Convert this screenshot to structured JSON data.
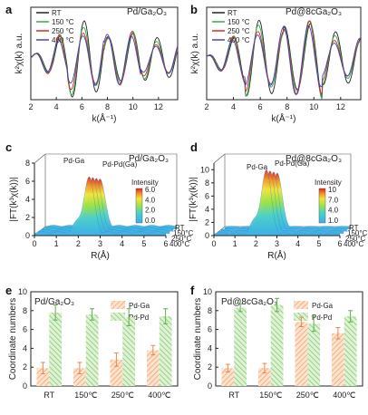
{
  "colors": {
    "RT": "#222222",
    "150": "#2fae4a",
    "250": "#d8262a",
    "400": "#3b49b8",
    "pd_ga": "#f5b98a",
    "pd_pd": "#9ad486"
  },
  "panels": {
    "a": {
      "letter": "a",
      "sample": "Pd/Ga₂O₃"
    },
    "b": {
      "letter": "b",
      "sample": "Pd@8cGa₂O₃"
    },
    "c": {
      "letter": "c",
      "sample": "Pd/Ga₂O₃"
    },
    "d": {
      "letter": "d",
      "sample": "Pd@8cGa₂O₃"
    },
    "e": {
      "letter": "e",
      "sample": "Pd/Ga₂O₃"
    },
    "f": {
      "letter": "f",
      "sample": "Pd@8cGa₂O₃"
    }
  },
  "exafs_legend": [
    "RT",
    "150 °C",
    "250 °C",
    "400 °C"
  ],
  "ft_annot": {
    "pd_ga": "Pd-Ga",
    "pd_pd": "Pd-Pd(Ga)",
    "intensity": "Intensity"
  },
  "temps_3d": [
    "RT",
    "150°C",
    "250°C",
    "400°C"
  ],
  "bar_legend": [
    "Pd-Ga",
    "Pd-Pd"
  ],
  "chart_data": [
    {
      "panel": "a",
      "type": "line",
      "xlabel": "k(Å⁻¹)",
      "ylabel": "k²χ(k) a.u.",
      "xlim": [
        2,
        13.5
      ],
      "xticks": [
        2,
        4,
        6,
        8,
        10,
        12
      ],
      "series": [
        {
          "name": "RT",
          "amp": [
            0.7,
            1.0,
            0.78,
            0.56
          ]
        },
        {
          "name": "150 °C",
          "amp": [
            0.66,
            0.94,
            0.74,
            0.52
          ]
        },
        {
          "name": "250 °C",
          "amp": [
            0.62,
            0.9,
            0.7,
            0.5
          ]
        },
        {
          "name": "400 °C",
          "amp": [
            0.56,
            0.84,
            0.66,
            0.46
          ]
        }
      ]
    },
    {
      "panel": "b",
      "type": "line",
      "xlabel": "k(Å⁻¹)",
      "ylabel": "k²χ(k) a.u.",
      "xlim": [
        2,
        13.5
      ],
      "xticks": [
        2,
        4,
        6,
        8,
        10,
        12
      ],
      "series": [
        {
          "name": "RT",
          "amp": [
            0.72,
            1.0,
            1.12,
            0.7
          ]
        },
        {
          "name": "150 °C",
          "amp": [
            0.68,
            0.96,
            1.04,
            0.66
          ]
        },
        {
          "name": "250 °C",
          "amp": [
            0.64,
            0.92,
            0.98,
            0.62
          ]
        },
        {
          "name": "400 °C",
          "amp": [
            0.6,
            0.88,
            0.92,
            0.58
          ]
        }
      ]
    },
    {
      "panel": "c",
      "type": "area",
      "xlabel": "R(Å)",
      "ylabel": "|FT(k³χ(k))|",
      "xlim": [
        0,
        6
      ],
      "xticks": [
        0,
        1,
        2,
        3,
        4,
        5,
        6
      ],
      "ylim": [
        0,
        8
      ],
      "yticks": [
        0,
        2,
        4,
        6,
        8
      ],
      "peak_r": 2.5,
      "peak": 6.5,
      "colorbar": {
        "ticks": [
          "6.0",
          "4.0",
          "2.0",
          "0.0"
        ]
      }
    },
    {
      "panel": "d",
      "type": "area",
      "xlabel": "R(Å)",
      "ylabel": "|FT(k³χ(k))|",
      "xlim": [
        0,
        6
      ],
      "xticks": [
        0,
        1,
        2,
        3,
        4,
        5,
        6
      ],
      "ylim": [
        0,
        11
      ],
      "yticks": [
        0,
        2,
        4,
        6,
        8,
        10
      ],
      "peak_r": 2.5,
      "peak": 10.0,
      "colorbar": {
        "ticks": [
          "10",
          "7.0",
          "4.0",
          "1.0"
        ]
      }
    },
    {
      "panel": "e",
      "type": "bar",
      "ylabel": "Coordinate numbers",
      "categories": [
        "RT",
        "150℃",
        "250℃",
        "400℃"
      ],
      "ylim": [
        0,
        10
      ],
      "yticks": [
        0,
        2,
        4,
        6,
        8,
        10
      ],
      "series": [
        {
          "name": "Pd-Ga",
          "values": [
            1.9,
            1.9,
            2.8,
            3.8
          ],
          "err": [
            0.6,
            0.6,
            0.7,
            0.5
          ]
        },
        {
          "name": "Pd-Pd",
          "values": [
            7.8,
            7.6,
            7.3,
            7.4
          ],
          "err": [
            0.8,
            0.6,
            0.9,
            0.8
          ]
        }
      ]
    },
    {
      "panel": "f",
      "type": "bar",
      "ylabel": "Coordinate numbers",
      "categories": [
        "RT",
        "150℃",
        "250℃",
        "400℃"
      ],
      "ylim": [
        0,
        10
      ],
      "yticks": [
        0,
        2,
        4,
        6,
        8,
        10
      ],
      "series": [
        {
          "name": "Pd-Ga",
          "values": [
            1.9,
            1.9,
            6.8,
            5.6
          ],
          "err": [
            0.4,
            0.5,
            0.5,
            0.6
          ]
        },
        {
          "name": "Pd-Pd",
          "values": [
            8.3,
            8.6,
            6.6,
            7.4
          ],
          "err": [
            0.4,
            0.7,
            0.8,
            0.6
          ]
        }
      ]
    }
  ]
}
